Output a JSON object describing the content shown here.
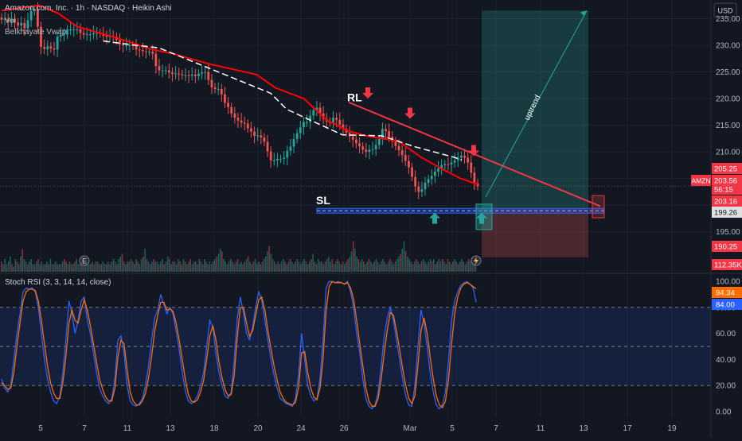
{
  "header": {
    "symbol_line": "Amazon.com, Inc. · 1h · NASDAQ · Heikin Ashi",
    "indicators": [
      "Vol",
      "Belkhayate Vwap"
    ]
  },
  "currency": "USD",
  "colors": {
    "up": "#26a69a",
    "down": "#ef5350",
    "background": "#131722",
    "grid": "#1e222d",
    "trendline": "#f23645",
    "vwap": "#ff0000",
    "rsi_k": "#2962ff",
    "rsi_d": "#ff6d00"
  },
  "chart_data": [
    {
      "type": "candlestick",
      "title": "Amazon.com, Inc. · 1h · NASDAQ · Heikin Ashi",
      "ylim": [
        187.5,
        238.5
      ],
      "y_ticks": [
        195.0,
        200.0,
        205.0,
        210.0,
        215.0,
        220.0,
        225.0,
        230.0,
        235.0
      ],
      "x_tick_labels": [
        "5",
        "7",
        "11",
        "13",
        "18",
        "20",
        "24",
        "26",
        "Mar",
        "5",
        "7",
        "11",
        "13",
        "17",
        "19"
      ],
      "price_badges": [
        {
          "label": "",
          "value": "205.25",
          "color": "#f23645"
        },
        {
          "label": "AMZN",
          "value": "203.56",
          "color": "#f23645"
        },
        {
          "label": "",
          "value": "56:15",
          "color": "#f23645"
        },
        {
          "label": "",
          "value": "203.16",
          "color": "#f23645"
        },
        {
          "label": "",
          "value": "199.26",
          "color": "#e0e0e0"
        },
        {
          "label": "",
          "value": "190.25",
          "color": "#f23645"
        },
        {
          "label": "",
          "value": "112.35K",
          "color": "#f23645"
        }
      ],
      "annotations": {
        "resistance_label": "RL",
        "stop_loss_label": "SL",
        "uptrend_label": "uptrend",
        "long_position": {
          "entry": 199.3,
          "target": 236.5,
          "stop": 190.2
        },
        "trendline": {
          "start": 219.3,
          "end": 199.8
        },
        "sl_band": [
          198.5,
          199.4
        ]
      },
      "series": [
        {
          "name": "Heikin Ashi",
          "open": [
            235.2,
            234.8,
            235.0,
            234.4,
            234.9,
            234.3,
            233.7,
            234.2,
            233.2,
            234.7,
            236.4,
            236.8,
            233.5,
            229.7,
            229.3,
            229.8,
            229.4,
            229.2,
            231.6,
            232.0,
            232.0,
            233.0,
            233.0,
            233.0,
            233.0,
            232.3,
            232.0,
            232.1,
            232.1,
            232.3,
            232.3,
            232.2,
            231.8,
            231.6,
            231.7,
            231.6,
            231.0,
            230.2,
            230.0,
            230.0,
            230.0,
            229.9,
            229.2,
            229.1,
            228.9,
            228.8,
            228.8,
            228.4,
            226.1,
            225.3,
            225.3,
            225.3,
            224.9,
            224.6,
            224.7,
            224.6,
            224.4,
            224.4,
            224.3,
            224.5,
            224.2,
            224.7,
            224.9,
            225.0,
            223.5,
            222.1,
            221.8,
            221.8,
            220.8,
            219.2,
            218.4,
            217.2,
            216.4,
            215.9,
            215.5,
            215.3,
            214.4,
            213.8,
            213.0,
            213.1,
            212.7,
            211.9,
            210.1,
            208.4,
            208.4,
            208.7,
            208.7,
            208.9,
            210.2,
            211.0,
            212.4,
            213.5,
            214.6,
            215.6,
            215.6,
            216.8,
            217.8,
            218.3,
            217.2,
            216.2,
            215.7,
            215.5,
            216.4,
            216.0,
            215.1,
            214.3,
            213.6,
            212.9,
            212.3,
            211.6,
            211.0,
            210.4,
            210.0,
            210.4,
            210.5,
            211.3,
            212.4,
            214.3,
            213.9,
            212.8,
            212.0,
            211.1,
            210.3,
            209.4,
            208.3,
            207.1,
            205.3,
            203.5,
            202.5,
            203.0,
            204.2,
            204.9,
            205.5,
            206.3,
            206.9,
            207.5,
            207.7,
            207.6,
            208.0,
            208.4,
            208.9,
            209.3,
            208.9,
            208.0,
            206.1,
            204.1
          ],
          "close": [
            234.8,
            235.0,
            234.4,
            234.9,
            234.3,
            233.7,
            234.2,
            233.2,
            234.7,
            236.4,
            236.8,
            233.5,
            229.7,
            229.3,
            229.8,
            229.4,
            229.2,
            231.6,
            232.0,
            232.0,
            233.0,
            233.0,
            233.0,
            233.0,
            232.3,
            232.0,
            232.1,
            232.1,
            232.3,
            232.3,
            232.2,
            231.8,
            231.6,
            231.7,
            231.6,
            231.0,
            230.2,
            230.0,
            230.0,
            230.0,
            229.9,
            229.2,
            229.1,
            228.9,
            228.8,
            228.8,
            228.4,
            226.1,
            225.3,
            225.3,
            225.3,
            224.9,
            224.6,
            224.7,
            224.6,
            224.4,
            224.4,
            224.3,
            224.5,
            224.2,
            224.7,
            224.9,
            225.0,
            223.5,
            222.1,
            221.8,
            221.8,
            220.8,
            219.2,
            218.4,
            217.2,
            216.4,
            215.9,
            215.5,
            215.3,
            214.4,
            213.8,
            213.0,
            213.1,
            212.7,
            211.9,
            210.1,
            208.4,
            208.4,
            208.7,
            208.7,
            208.9,
            210.2,
            211.0,
            212.4,
            213.5,
            214.6,
            215.6,
            215.6,
            216.8,
            217.8,
            218.3,
            217.2,
            216.2,
            215.7,
            215.5,
            216.4,
            216.0,
            215.1,
            214.3,
            213.6,
            212.9,
            212.3,
            211.6,
            211.0,
            210.4,
            210.0,
            210.4,
            210.5,
            211.3,
            212.4,
            214.3,
            213.9,
            212.8,
            212.0,
            211.1,
            210.3,
            209.4,
            208.3,
            207.1,
            205.3,
            203.5,
            202.5,
            203.0,
            204.2,
            204.9,
            205.5,
            206.3,
            206.9,
            207.5,
            207.7,
            207.6,
            208.0,
            208.4,
            208.9,
            209.3,
            208.9,
            208.0,
            206.1,
            204.1,
            203.56
          ]
        },
        {
          "name": "Belkhayate Vwap",
          "points": [
            [
              0,
              236.5
            ],
            [
              20,
              237.5
            ],
            [
              30,
              236.0
            ],
            [
              40,
              233.5
            ],
            [
              60,
              231.5
            ],
            [
              80,
              229.2
            ],
            [
              90,
              228.5
            ],
            [
              110,
              226.5
            ],
            [
              135,
              224.5
            ],
            [
              145,
              222.0
            ],
            [
              160,
              220.0
            ],
            [
              172,
              216.0
            ],
            [
              183,
              214.0
            ],
            [
              193,
              213.0
            ],
            [
              210,
              212.0
            ],
            [
              222,
              209.0
            ],
            [
              232,
              207.0
            ],
            [
              243,
              205.0
            ],
            [
              252,
              203.9
            ]
          ]
        },
        {
          "name": "Vol",
          "values": [
            4,
            3,
            5,
            3,
            4,
            6,
            3,
            2,
            5,
            4,
            3,
            6,
            9,
            5,
            4,
            3,
            4,
            5,
            3,
            3,
            4,
            5,
            3,
            4,
            3,
            3,
            4,
            3,
            5,
            3,
            3,
            4,
            3,
            3,
            3,
            4,
            5,
            4,
            3,
            4,
            3,
            3,
            4,
            5,
            3,
            4,
            3,
            6,
            4,
            5,
            3,
            3,
            4,
            3,
            4,
            4,
            3,
            3,
            4,
            3,
            3,
            4,
            3,
            4,
            5,
            4,
            3,
            5,
            6,
            7,
            4,
            3,
            4,
            4,
            5,
            4,
            3,
            5,
            4,
            3,
            5,
            6,
            9,
            5,
            4,
            3,
            4,
            5,
            4,
            4,
            3,
            4,
            5,
            3,
            4,
            6,
            5,
            3,
            4,
            4,
            3,
            5,
            4,
            3,
            5,
            4,
            3,
            4,
            5,
            3,
            4,
            4,
            3,
            5,
            4,
            3,
            5,
            4,
            3,
            4,
            3,
            4,
            5,
            6,
            7,
            9,
            8,
            5,
            4,
            3,
            4,
            5,
            4,
            3,
            4,
            5,
            3,
            4,
            3,
            4,
            5,
            6,
            4,
            3,
            4,
            5,
            3,
            4,
            3,
            4,
            5,
            6,
            8,
            10,
            7,
            5,
            4,
            3,
            4,
            3,
            4,
            5,
            4,
            3,
            4,
            5,
            4,
            3,
            4,
            5,
            4,
            3,
            4,
            5,
            4,
            3,
            4,
            5,
            7,
            4,
            3,
            5,
            4,
            4,
            3,
            4,
            5,
            6,
            4,
            5,
            3,
            4,
            5,
            4,
            3,
            4,
            3,
            4,
            5,
            6,
            8,
            12,
            9,
            6,
            5,
            4,
            5,
            4,
            3,
            4,
            5,
            4,
            3,
            4,
            5,
            4,
            3,
            4,
            5,
            4,
            3,
            4,
            5,
            4,
            3,
            4,
            5,
            6,
            7,
            9,
            12,
            8,
            6,
            5,
            4,
            3,
            4,
            5,
            4,
            3,
            4,
            5,
            4,
            3,
            4,
            5,
            4,
            5,
            3,
            4,
            5,
            4,
            5,
            4,
            3,
            5,
            4,
            3,
            4,
            5,
            4,
            3,
            4,
            5,
            4,
            3,
            4,
            5,
            4,
            3,
            4,
            5
          ]
        }
      ]
    },
    {
      "type": "line",
      "title": "Stoch RSI (3, 3, 14, 14, close)",
      "ylim": [
        -5,
        105
      ],
      "y_ticks": [
        0.0,
        20.0,
        40.0,
        60.0,
        80.0,
        100.0
      ],
      "bands": [
        20,
        50,
        80
      ],
      "value_badges": [
        {
          "value": "94.34",
          "color": "#ff6d00"
        },
        {
          "value": "84.00",
          "color": "#2962ff"
        }
      ],
      "series": [
        {
          "name": "K",
          "values": [
            25,
            18,
            15,
            20,
            40,
            60,
            75,
            92,
            95,
            94,
            95,
            92,
            80,
            60,
            40,
            25,
            15,
            8,
            6,
            12,
            30,
            55,
            85,
            75,
            60,
            70,
            85,
            88,
            70,
            60,
            45,
            30,
            18,
            12,
            8,
            6,
            10,
            25,
            55,
            58,
            45,
            20,
            8,
            5,
            4,
            6,
            10,
            20,
            35,
            55,
            72,
            78,
            90,
            82,
            75,
            80,
            75,
            62,
            48,
            30,
            16,
            8,
            6,
            8,
            12,
            20,
            30,
            50,
            70,
            65,
            45,
            30,
            20,
            12,
            10,
            15,
            40,
            72,
            88,
            76,
            60,
            55,
            65,
            80,
            92,
            85,
            70,
            55,
            40,
            28,
            18,
            10,
            8,
            6,
            5,
            4,
            10,
            28,
            60,
            40,
            20,
            12,
            8,
            10,
            25,
            55,
            95,
            100,
            100,
            99,
            100,
            99,
            98,
            100,
            92,
            80,
            60,
            45,
            25,
            10,
            4,
            2,
            5,
            15,
            35,
            58,
            72,
            80,
            70,
            55,
            40,
            25,
            12,
            5,
            4,
            20,
            50,
            78,
            68,
            50,
            30,
            15,
            5,
            2,
            5,
            15,
            40,
            70,
            85,
            92,
            97,
            99,
            100,
            98,
            95,
            84
          ]
        },
        {
          "name": "D",
          "values": [
            22,
            20,
            17,
            18,
            30,
            50,
            68,
            85,
            92,
            94,
            94,
            93,
            85,
            70,
            52,
            35,
            22,
            14,
            10,
            10,
            22,
            42,
            68,
            78,
            70,
            68,
            78,
            86,
            78,
            66,
            52,
            38,
            25,
            17,
            11,
            8,
            8,
            18,
            42,
            55,
            52,
            32,
            15,
            8,
            5,
            5,
            8,
            14,
            26,
            42,
            62,
            74,
            84,
            84,
            78,
            79,
            77,
            68,
            55,
            40,
            25,
            13,
            8,
            7,
            9,
            15,
            24,
            40,
            58,
            66,
            55,
            38,
            26,
            17,
            12,
            13,
            28,
            58,
            80,
            80,
            68,
            58,
            62,
            74,
            86,
            88,
            78,
            62,
            48,
            35,
            24,
            15,
            10,
            7,
            6,
            5,
            7,
            18,
            45,
            46,
            30,
            18,
            11,
            9,
            18,
            40,
            78,
            96,
            100,
            99,
            99,
            99,
            98,
            99,
            95,
            86,
            70,
            52,
            35,
            18,
            8,
            4,
            4,
            10,
            25,
            45,
            63,
            76,
            74,
            62,
            48,
            33,
            20,
            10,
            6,
            12,
            35,
            62,
            72,
            60,
            42,
            25,
            12,
            5,
            3,
            8,
            25,
            52,
            75,
            88,
            95,
            98,
            99,
            98,
            96,
            94.34
          ]
        }
      ]
    }
  ]
}
